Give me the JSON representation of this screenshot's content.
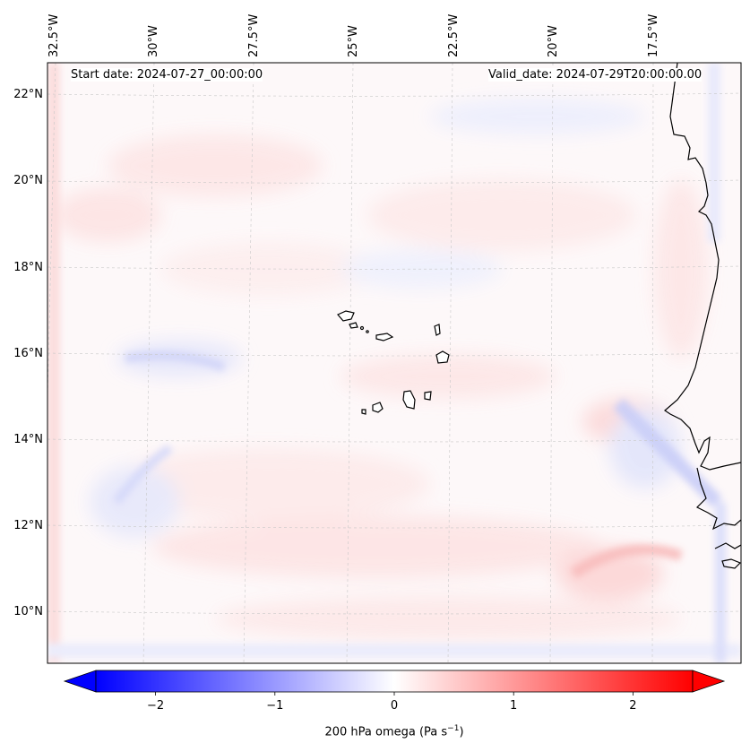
{
  "map": {
    "start_label": "Start date: 2024-07-27_00:00:00",
    "valid_label": "Valid_date: 2024-07-29T20:00:00.00",
    "lon_ticks": [
      "32.5°W",
      "30°W",
      "27.5°W",
      "25°W",
      "22.5°W",
      "20°W",
      "17.5°W"
    ],
    "lat_ticks": [
      "22°N",
      "20°N",
      "18°N",
      "16°N",
      "14°N",
      "12°N",
      "10°N"
    ],
    "variable": "200 hPa omega",
    "units_base": "(Pa s",
    "units_exp": "−1",
    "units_close": ")"
  },
  "colorbar": {
    "ticks": [
      "−2",
      "−1",
      "0",
      "1",
      "2"
    ],
    "tick_values": [
      -2,
      -1,
      0,
      1,
      2
    ],
    "range": [
      -2.5,
      2.5
    ],
    "neg_color": "#0000ff",
    "mid_color": "#ffffff",
    "pos_color": "#ff0000"
  },
  "colors": {
    "coastline": "#000000",
    "gridline": "#c8c8c8"
  }
}
